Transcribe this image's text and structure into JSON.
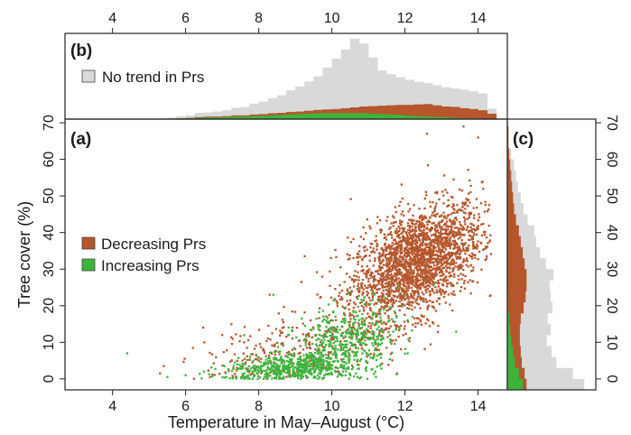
{
  "colors": {
    "decreasing": "#b5562c",
    "increasing": "#3cb43c",
    "no_trend": "#d9d9d9",
    "frame": "#222222"
  },
  "chart_data": [
    {
      "panel": "(a)",
      "type": "scatter",
      "xlabel": "Temperature in May–August (°C)",
      "ylabel": "Tree cover (%)",
      "xlim": [
        2.7,
        14.8
      ],
      "ylim": [
        -3,
        71
      ],
      "xticks": [
        4,
        6,
        8,
        10,
        12,
        14
      ],
      "yticks": [
        0,
        10,
        20,
        30,
        40,
        50,
        60,
        70
      ],
      "legend_position": "middle-left",
      "series": [
        {
          "name": "Decreasing Prs",
          "clusters": [
            {
              "cx": 12.3,
              "sx": 0.9,
              "m": 4.3,
              "c": -21,
              "sy": 7,
              "n": 2400
            },
            {
              "cx": 9.3,
              "sx": 1.4,
              "m": 2.0,
              "c": -10,
              "sy": 5,
              "n": 350
            }
          ],
          "points": [
            [
              5.4,
              3.5
            ],
            [
              6.2,
              8.5
            ],
            [
              7.0,
              12
            ],
            [
              7.6,
              10
            ],
            [
              8.3,
              23
            ],
            [
              8.0,
              5
            ],
            [
              7.3,
              3
            ],
            [
              12.6,
              67
            ],
            [
              13.6,
              69
            ],
            [
              14.0,
              66
            ]
          ]
        },
        {
          "name": "Increasing Prs",
          "clusters": [
            {
              "cx": 8.9,
              "sx": 0.9,
              "m": 0.5,
              "c": -1.5,
              "sy": 1.8,
              "n": 500
            },
            {
              "cx": 10.4,
              "sx": 0.7,
              "m": 2.5,
              "c": -16,
              "sy": 5,
              "n": 450
            }
          ],
          "points": [
            [
              4.4,
              7
            ],
            [
              5.5,
              0.5
            ],
            [
              6.0,
              1
            ],
            [
              6.5,
              2
            ],
            [
              7.6,
              12
            ],
            [
              8.4,
              23
            ],
            [
              11.8,
              25
            ],
            [
              12.0,
              23
            ],
            [
              12.8,
              26
            ]
          ]
        }
      ]
    },
    {
      "panel": "(b)",
      "type": "area",
      "subtype": "stacked step histogram (marginal of temperature)",
      "xlim": [
        2.7,
        14.8
      ],
      "xticks": [
        4,
        6,
        8,
        10,
        12,
        14
      ],
      "legend_position": "top-left",
      "x_bin_start": 3.0,
      "x_bin_width": 0.25,
      "series": [
        {
          "name": "Increasing Prs",
          "values": [
            0,
            0,
            0,
            0,
            0,
            0,
            0,
            0,
            0,
            0.5,
            0.5,
            1,
            1,
            1.5,
            2,
            2,
            2.5,
            3,
            3,
            3.5,
            4,
            4.5,
            5,
            5.5,
            6,
            6.5,
            7,
            7,
            7,
            7,
            7,
            7,
            6.5,
            6,
            5.5,
            5,
            4,
            3.5,
            3,
            2.5,
            2,
            1.5,
            1,
            1,
            0.5,
            0.5
          ]
        },
        {
          "name": "Decreasing Prs",
          "values": [
            0,
            0,
            0,
            0,
            0,
            0,
            0,
            0,
            0,
            0,
            0,
            0,
            0.5,
            1,
            1,
            1,
            1,
            1.5,
            1.5,
            2,
            2,
            2.5,
            2.5,
            3,
            3,
            3.5,
            4,
            4.5,
            5,
            6,
            7,
            8,
            9,
            10,
            11,
            12,
            13,
            14,
            15,
            14,
            13,
            13,
            12,
            11,
            10,
            6
          ]
        },
        {
          "name": "No trend in Prs",
          "values": [
            0,
            0,
            0,
            0,
            0,
            0,
            0,
            0,
            0.5,
            1,
            1.5,
            2.5,
            3,
            5,
            5,
            6,
            7,
            9,
            10,
            13,
            15,
            18,
            21,
            26,
            30,
            35,
            40,
            50,
            60,
            70,
            82,
            75,
            58,
            42,
            37,
            33,
            30,
            27,
            25,
            24,
            23,
            22,
            22,
            21,
            20,
            6
          ]
        }
      ],
      "ylim": [
        0,
        100
      ]
    },
    {
      "panel": "(c)",
      "type": "area",
      "subtype": "stacked step histogram (marginal of tree cover)",
      "ylim": [
        -3,
        71
      ],
      "yticks": [
        0,
        10,
        20,
        30,
        40,
        50,
        60,
        70
      ],
      "y_bin_start": -3,
      "y_bin_width": 3,
      "series": [
        {
          "name": "Increasing Prs",
          "values": [
            8,
            6,
            4,
            3,
            2,
            1.5,
            1,
            0.5,
            0.5,
            0,
            0,
            0,
            0,
            0,
            0,
            0,
            0,
            0,
            0,
            0,
            0,
            0,
            0,
            0
          ]
        },
        {
          "name": "Decreasing Prs",
          "values": [
            2,
            3,
            3.5,
            4,
            4.5,
            5,
            6,
            8,
            9,
            10,
            10,
            9,
            8,
            7,
            6,
            4.5,
            3.5,
            3,
            2.5,
            2,
            1.5,
            1,
            0.5,
            0.5
          ]
        },
        {
          "name": "No trend in Prs",
          "values": [
            30,
            25,
            18,
            16,
            14,
            16,
            14,
            15,
            13,
            12,
            14,
            11,
            9,
            8,
            8,
            6,
            5,
            4,
            3,
            2.5,
            2,
            1,
            0.5,
            0.5
          ]
        }
      ],
      "xlim": [
        0,
        45
      ]
    }
  ]
}
